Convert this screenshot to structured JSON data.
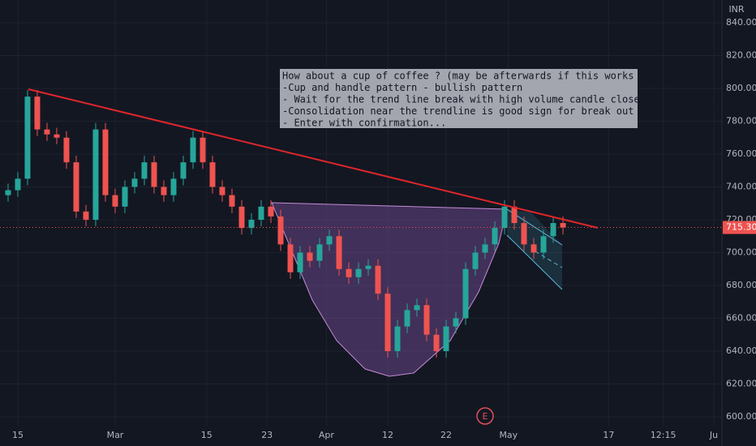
{
  "chart_data": {
    "type": "candlestick",
    "currency": "INR",
    "annotation": [
      "How about a cup of coffee ? (may be afterwards if this works :P)",
      "-Cup and handle pattern - bullish pattern",
      "- Wait for the trend line break with high volume candle close",
      "-Consolidation near the trendline is good sign for break out (who knows :P)",
      "- Enter with confirmation..."
    ],
    "candles": [
      [
        735,
        742,
        731,
        738
      ],
      [
        738,
        749,
        734,
        745
      ],
      [
        745,
        799,
        741,
        795
      ],
      [
        795,
        799,
        771,
        775
      ],
      [
        775,
        779,
        768,
        772
      ],
      [
        772,
        776,
        766,
        770
      ],
      [
        770,
        774,
        751,
        755
      ],
      [
        755,
        759,
        721,
        725
      ],
      [
        725,
        729,
        716,
        720
      ],
      [
        720,
        779,
        716,
        775
      ],
      [
        775,
        779,
        731,
        735
      ],
      [
        735,
        739,
        724,
        728
      ],
      [
        728,
        744,
        724,
        740
      ],
      [
        740,
        749,
        736,
        745
      ],
      [
        745,
        759,
        741,
        755
      ],
      [
        755,
        759,
        736,
        740
      ],
      [
        740,
        744,
        731,
        735
      ],
      [
        735,
        749,
        731,
        745
      ],
      [
        745,
        759,
        741,
        755
      ],
      [
        755,
        774,
        751,
        770
      ],
      [
        770,
        774,
        751,
        755
      ],
      [
        755,
        759,
        736,
        740
      ],
      [
        740,
        744,
        731,
        735
      ],
      [
        735,
        739,
        724,
        728
      ],
      [
        728,
        732,
        711,
        715
      ],
      [
        715,
        724,
        711,
        720
      ],
      [
        720,
        732,
        716,
        728
      ],
      [
        728,
        732,
        718,
        722
      ],
      [
        722,
        726,
        701,
        705
      ],
      [
        705,
        709,
        684,
        688
      ],
      [
        688,
        704,
        684,
        700
      ],
      [
        700,
        704,
        691,
        695
      ],
      [
        695,
        709,
        691,
        705
      ],
      [
        705,
        714,
        701,
        710
      ],
      [
        710,
        714,
        686,
        690
      ],
      [
        690,
        694,
        681,
        685
      ],
      [
        685,
        694,
        681,
        690
      ],
      [
        690,
        696,
        686,
        692
      ],
      [
        692,
        696,
        671,
        675
      ],
      [
        675,
        679,
        636,
        640
      ],
      [
        640,
        659,
        636,
        655
      ],
      [
        655,
        669,
        651,
        665
      ],
      [
        665,
        672,
        661,
        668
      ],
      [
        668,
        672,
        646,
        650
      ],
      [
        650,
        654,
        636,
        640
      ],
      [
        640,
        659,
        636,
        655
      ],
      [
        655,
        664,
        651,
        660
      ],
      [
        660,
        694,
        656,
        690
      ],
      [
        690,
        704,
        686,
        700
      ],
      [
        700,
        709,
        696,
        705
      ],
      [
        705,
        719,
        701,
        715
      ],
      [
        715,
        732,
        711,
        728
      ],
      [
        728,
        732,
        714,
        718
      ],
      [
        718,
        722,
        701,
        705
      ],
      [
        705,
        709,
        696,
        700
      ],
      [
        700,
        714,
        696,
        710
      ],
      [
        710,
        722,
        706,
        718
      ],
      [
        718,
        722,
        711,
        715.3
      ]
    ],
    "first_index": -1,
    "last_price": {
      "value": 715.3,
      "label": "715.30"
    },
    "colors": {
      "up": "#26a69a",
      "down": "#ef5350"
    },
    "xlim": [
      -1.83,
      72.33
    ],
    "xticks": [
      {
        "value": 0,
        "label": "15"
      },
      {
        "value": 10,
        "label": "Mar"
      },
      {
        "value": 19.4,
        "label": "15"
      },
      {
        "value": 25.6,
        "label": "23"
      },
      {
        "value": 31.7,
        "label": "Apr"
      },
      {
        "value": 38,
        "label": "12"
      },
      {
        "value": 44,
        "label": "22"
      },
      {
        "value": 50.4,
        "label": "May"
      },
      {
        "value": 60.7,
        "label": "17"
      },
      {
        "value": 66.3,
        "label": "12:15"
      },
      {
        "value": 71.5,
        "label": "Ju"
      }
    ],
    "ylim": [
      594.57,
      853.83
    ],
    "yticks": [
      {
        "value": 600,
        "label": "600.00"
      },
      {
        "value": 620,
        "label": "620.00"
      },
      {
        "value": 640,
        "label": "640.00"
      },
      {
        "value": 660,
        "label": "660.00"
      },
      {
        "value": 680,
        "label": "680.00"
      },
      {
        "value": 700,
        "label": "700.00"
      },
      {
        "value": 720,
        "label": "720.00"
      },
      {
        "value": 740,
        "label": "740.00"
      },
      {
        "value": 760,
        "label": "760.00"
      },
      {
        "value": 780,
        "label": "780.00"
      },
      {
        "value": 800,
        "label": "800.00"
      },
      {
        "value": 820,
        "label": "820.00"
      },
      {
        "value": 840,
        "label": "840.00"
      }
    ],
    "grid": true
  }
}
